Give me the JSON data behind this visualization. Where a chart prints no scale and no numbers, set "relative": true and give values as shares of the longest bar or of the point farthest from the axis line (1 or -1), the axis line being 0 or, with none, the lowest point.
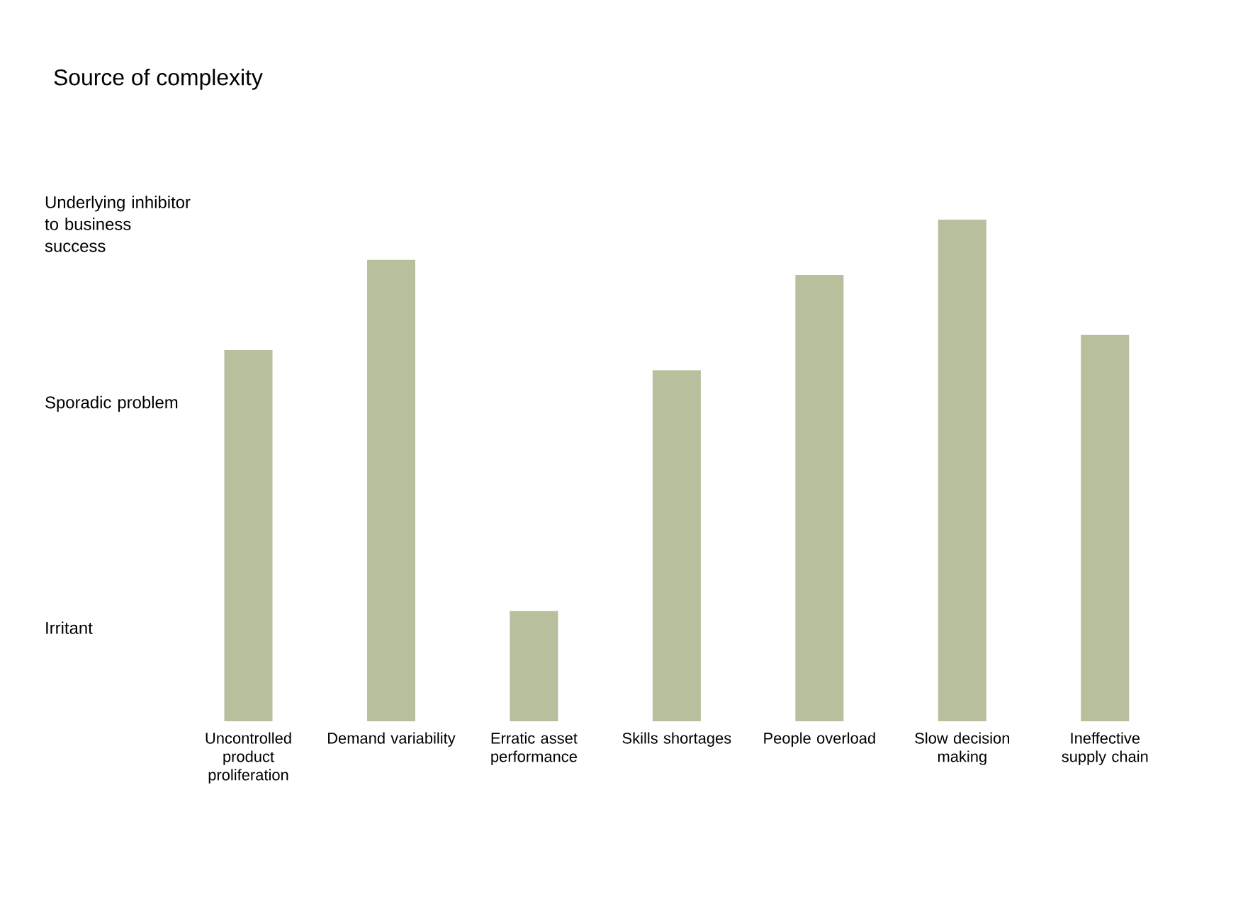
{
  "chart_data": {
    "type": "bar",
    "title": "Source of complexity",
    "relative": true,
    "categories": [
      "Uncontrolled product proliferation",
      "Demand variability",
      "Erratic asset performance",
      "Skills shortages",
      "People overload",
      "Slow decision making",
      "Ineffective supply chain"
    ],
    "values": [
      0.74,
      0.92,
      0.22,
      0.7,
      0.89,
      1,
      0.77
    ],
    "color": "#b8bf9c",
    "annotations": [
      "Irritant",
      "Sporadic problem",
      "Underlying inhibitor to business success"
    ],
    "grid": false
  }
}
